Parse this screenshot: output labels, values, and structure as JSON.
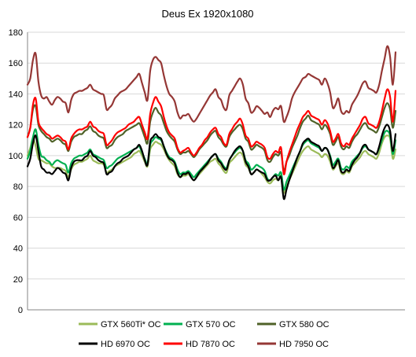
{
  "chart_data": {
    "type": "line",
    "title": "Deus Ex 1920x1080",
    "xlabel": "",
    "ylabel": "",
    "ylim": [
      0,
      180
    ],
    "yticks": [
      0,
      20,
      40,
      60,
      80,
      100,
      120,
      140,
      160,
      180
    ],
    "grid": "horizontal",
    "legend_position": "bottom",
    "series": [
      {
        "name": "GTX 560Ti* OC",
        "color": "#9bbb59",
        "values": [
          100,
          105,
          111,
          106,
          98,
          97,
          96,
          95,
          95,
          93,
          92,
          92,
          92,
          91,
          90,
          86,
          91,
          94,
          95,
          96,
          96,
          97,
          98,
          100,
          97,
          96,
          95,
          95,
          94,
          89,
          90,
          91,
          93,
          94,
          95,
          96,
          97,
          98,
          99,
          101,
          102,
          103,
          100,
          96,
          93,
          104,
          107,
          109,
          108,
          107,
          104,
          100,
          97,
          95,
          93,
          88,
          86,
          87,
          87,
          88,
          86,
          84,
          86,
          88,
          90,
          92,
          94,
          96,
          97,
          98,
          95,
          93,
          90,
          89,
          95,
          97,
          99,
          101,
          102,
          100,
          94,
          92,
          88,
          89,
          91,
          90,
          88,
          86,
          83,
          82,
          84,
          85,
          84,
          87,
          76,
          80,
          84,
          88,
          92,
          96,
          100,
          103,
          105,
          106,
          104,
          103,
          102,
          101,
          99,
          101,
          100,
          96,
          91,
          93,
          95,
          89,
          88,
          90,
          89,
          93,
          95,
          97,
          99,
          102,
          103,
          101,
          100,
          99,
          98,
          102,
          108,
          112,
          113,
          111,
          98,
          104
        ]
      },
      {
        "name": "GTX 570 OC",
        "color": "#00b050",
        "values": [
          98,
          103,
          112,
          117,
          107,
          100,
          99,
          97,
          96,
          94,
          96,
          97,
          96,
          95,
          94,
          89,
          95,
          98,
          99,
          100,
          100,
          101,
          102,
          104,
          101,
          100,
          99,
          98,
          97,
          92,
          93,
          94,
          96,
          98,
          99,
          100,
          101,
          102,
          103,
          104,
          105,
          106,
          102,
          98,
          95,
          107,
          110,
          112,
          111,
          110,
          106,
          102,
          99,
          98,
          96,
          91,
          88,
          89,
          89,
          90,
          88,
          86,
          88,
          90,
          92,
          94,
          96,
          98,
          100,
          101,
          98,
          96,
          93,
          92,
          97,
          100,
          102,
          104,
          105,
          103,
          97,
          95,
          91,
          92,
          94,
          93,
          92,
          90,
          85,
          84,
          86,
          88,
          87,
          89,
          78,
          83,
          87,
          91,
          95,
          99,
          103,
          107,
          109,
          110,
          108,
          107,
          106,
          105,
          103,
          105,
          104,
          100,
          94,
          96,
          98,
          92,
          91,
          93,
          92,
          96,
          98,
          100,
          102,
          105,
          106,
          104,
          103,
          102,
          101,
          105,
          110,
          115,
          116,
          113,
          101,
          110
        ]
      },
      {
        "name": "GTX 580 OC",
        "color": "#4f6228",
        "values": [
          112,
          118,
          130,
          132,
          120,
          116,
          114,
          112,
          111,
          109,
          110,
          111,
          110,
          108,
          107,
          103,
          109,
          112,
          113,
          114,
          114,
          116,
          117,
          119,
          116,
          115,
          113,
          112,
          111,
          105,
          106,
          107,
          110,
          112,
          113,
          114,
          116,
          117,
          118,
          119,
          120,
          121,
          117,
          112,
          108,
          122,
          128,
          131,
          128,
          126,
          121,
          116,
          113,
          111,
          109,
          104,
          101,
          102,
          102,
          103,
          101,
          99,
          101,
          104,
          106,
          108,
          110,
          113,
          115,
          116,
          112,
          110,
          107,
          106,
          112,
          115,
          117,
          119,
          120,
          117,
          111,
          109,
          104,
          105,
          107,
          106,
          105,
          103,
          97,
          96,
          99,
          101,
          100,
          102,
          90,
          96,
          100,
          105,
          109,
          113,
          118,
          122,
          124,
          126,
          123,
          122,
          121,
          120,
          117,
          120,
          118,
          114,
          107,
          109,
          112,
          106,
          104,
          106,
          105,
          109,
          112,
          114,
          117,
          120,
          121,
          118,
          117,
          116,
          115,
          119,
          125,
          131,
          134,
          130,
          118,
          129
        ]
      },
      {
        "name": "HD 6970 OC",
        "color": "#000000",
        "values": [
          93,
          98,
          108,
          113,
          103,
          93,
          91,
          89,
          89,
          88,
          90,
          92,
          91,
          89,
          88,
          84,
          92,
          96,
          97,
          97,
          97,
          99,
          100,
          103,
          100,
          99,
          97,
          96,
          95,
          88,
          89,
          90,
          93,
          95,
          96,
          98,
          99,
          100,
          102,
          104,
          105,
          107,
          103,
          97,
          94,
          109,
          112,
          114,
          112,
          111,
          106,
          101,
          98,
          97,
          95,
          89,
          86,
          88,
          88,
          89,
          86,
          84,
          86,
          89,
          91,
          93,
          95,
          98,
          100,
          101,
          97,
          95,
          92,
          91,
          97,
          100,
          103,
          105,
          106,
          103,
          96,
          93,
          88,
          89,
          91,
          90,
          89,
          88,
          84,
          84,
          86,
          87,
          84,
          86,
          72,
          78,
          84,
          89,
          94,
          99,
          103,
          108,
          110,
          111,
          109,
          108,
          107,
          106,
          103,
          105,
          104,
          99,
          92,
          94,
          97,
          90,
          89,
          91,
          90,
          94,
          97,
          99,
          102,
          106,
          107,
          104,
          103,
          102,
          101,
          106,
          113,
          118,
          120,
          116,
          103,
          114
        ]
      },
      {
        "name": "HD 7870 OC",
        "color": "#ff0000",
        "values": [
          112,
          118,
          133,
          137,
          122,
          118,
          116,
          114,
          113,
          111,
          112,
          113,
          112,
          110,
          109,
          104,
          111,
          114,
          116,
          117,
          117,
          118,
          119,
          122,
          119,
          118,
          116,
          115,
          114,
          107,
          108,
          110,
          113,
          115,
          116,
          117,
          118,
          120,
          121,
          122,
          124,
          125,
          120,
          115,
          111,
          127,
          134,
          138,
          135,
          132,
          125,
          119,
          115,
          113,
          111,
          105,
          102,
          103,
          104,
          105,
          102,
          100,
          102,
          105,
          107,
          110,
          112,
          115,
          117,
          118,
          114,
          112,
          108,
          107,
          114,
          117,
          120,
          122,
          124,
          120,
          113,
          111,
          106,
          107,
          109,
          108,
          107,
          105,
          99,
          98,
          101,
          103,
          102,
          105,
          88,
          96,
          102,
          107,
          112,
          117,
          121,
          125,
          127,
          129,
          126,
          125,
          124,
          123,
          120,
          123,
          121,
          116,
          109,
          111,
          114,
          108,
          106,
          108,
          107,
          111,
          114,
          117,
          120,
          124,
          125,
          121,
          120,
          119,
          118,
          122,
          129,
          137,
          143,
          138,
          122,
          142
        ]
      },
      {
        "name": "HD 7950 OC",
        "color": "#953735",
        "values": [
          146,
          150,
          162,
          166,
          148,
          139,
          137,
          138,
          135,
          133,
          136,
          138,
          137,
          135,
          134,
          128,
          136,
          140,
          141,
          142,
          142,
          143,
          144,
          146,
          143,
          142,
          141,
          140,
          139,
          130,
          131,
          133,
          137,
          139,
          141,
          142,
          143,
          145,
          147,
          149,
          151,
          153,
          147,
          141,
          136,
          155,
          162,
          164,
          162,
          160,
          152,
          145,
          140,
          138,
          135,
          128,
          124,
          126,
          126,
          127,
          124,
          122,
          124,
          127,
          130,
          133,
          136,
          139,
          141,
          143,
          138,
          136,
          131,
          130,
          139,
          142,
          145,
          148,
          150,
          146,
          137,
          134,
          128,
          129,
          132,
          131,
          129,
          127,
          128,
          125,
          129,
          131,
          130,
          132,
          122,
          125,
          130,
          137,
          141,
          144,
          147,
          150,
          151,
          153,
          152,
          151,
          150,
          149,
          146,
          150,
          147,
          141,
          131,
          133,
          137,
          129,
          127,
          129,
          128,
          133,
          136,
          139,
          143,
          147,
          148,
          144,
          143,
          142,
          141,
          146,
          155,
          163,
          171,
          164,
          146,
          167
        ]
      }
    ]
  }
}
